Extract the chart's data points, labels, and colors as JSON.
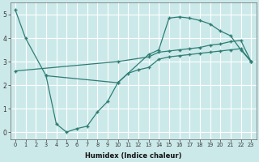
{
  "title": "",
  "xlabel": "Humidex (Indice chaleur)",
  "ylabel": "",
  "bg_color": "#cce9ea",
  "grid_color": "#ffffff",
  "line_color": "#2e7d74",
  "xlim": [
    -0.5,
    23.5
  ],
  "ylim": [
    -0.3,
    5.5
  ],
  "xticks": [
    0,
    1,
    2,
    3,
    4,
    5,
    6,
    7,
    8,
    9,
    10,
    11,
    12,
    13,
    14,
    15,
    16,
    17,
    18,
    19,
    20,
    21,
    22,
    23
  ],
  "yticks": [
    0,
    1,
    2,
    3,
    4,
    5
  ],
  "line1": {
    "x": [
      0,
      1,
      3,
      10,
      13,
      14,
      15,
      16,
      17,
      18,
      19,
      20,
      21,
      22,
      23
    ],
    "y": [
      5.2,
      4.0,
      2.4,
      2.1,
      3.3,
      3.5,
      4.85,
      4.9,
      4.85,
      4.75,
      4.6,
      4.3,
      4.1,
      3.5,
      3.0
    ]
  },
  "line2": {
    "x": [
      3,
      4,
      5,
      6,
      7,
      8,
      9,
      10,
      11,
      12,
      13,
      14,
      15,
      16,
      17,
      18,
      19,
      20,
      21,
      22,
      23
    ],
    "y": [
      2.4,
      0.35,
      0.0,
      0.15,
      0.25,
      0.85,
      1.3,
      2.1,
      2.5,
      2.65,
      2.75,
      3.1,
      3.2,
      3.25,
      3.3,
      3.35,
      3.4,
      3.45,
      3.5,
      3.55,
      3.0
    ]
  },
  "line3": {
    "x": [
      0,
      10,
      13,
      14,
      15,
      16,
      17,
      18,
      19,
      20,
      21,
      22,
      23
    ],
    "y": [
      2.6,
      3.0,
      3.2,
      3.4,
      3.45,
      3.5,
      3.55,
      3.6,
      3.7,
      3.75,
      3.85,
      3.9,
      3.0
    ]
  }
}
